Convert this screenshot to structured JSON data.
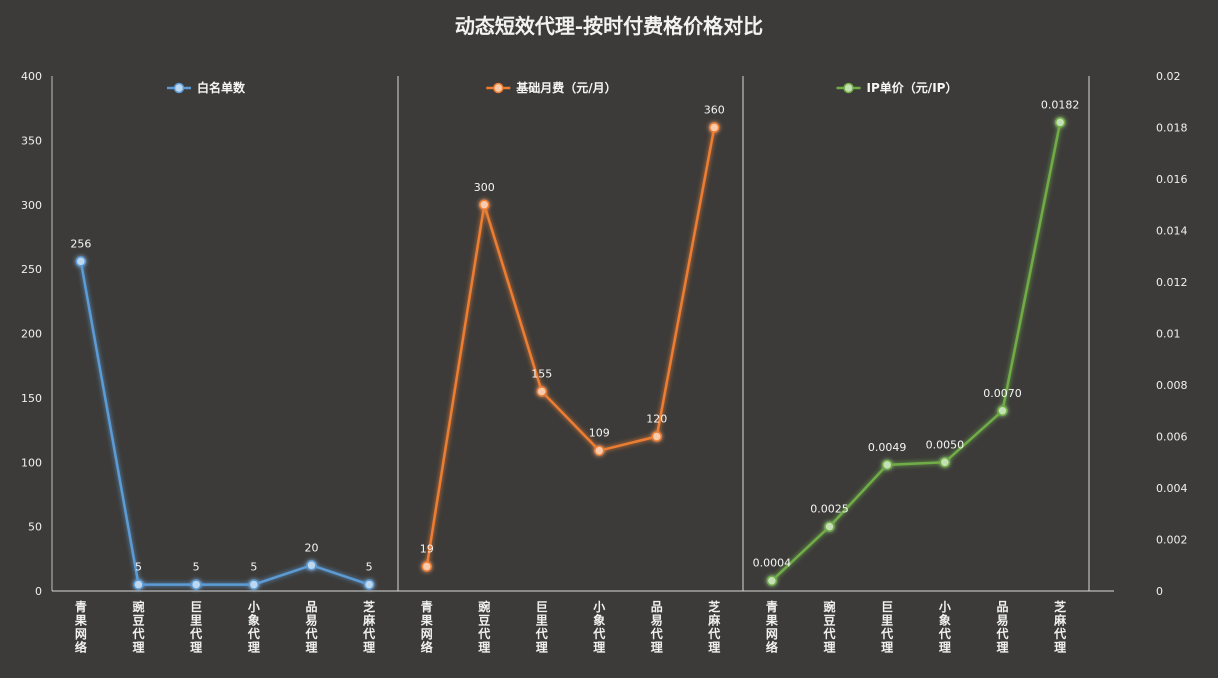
{
  "title": "动态短效代理-按时付费格价格对比",
  "colors": {
    "background": "#3c3b39",
    "series1": "#5b9bd5",
    "series2": "#ed7d31",
    "series3": "#70ad47",
    "marker1": "#bdd7ee",
    "marker2": "#f8cbad",
    "marker3": "#c5e0b4"
  },
  "chart_data": {
    "type": "line",
    "categories": [
      "青果网络",
      "豌豆代理",
      "巨里代理",
      "小象代理",
      "品易代理",
      "芝麻代理"
    ],
    "left_axis": {
      "ticks": [
        "0",
        "50",
        "100",
        "150",
        "200",
        "250",
        "300",
        "350",
        "400"
      ],
      "ylim": [
        0,
        400
      ]
    },
    "right_axis": {
      "ticks": [
        "0",
        "0.002",
        "0.004",
        "0.006",
        "0.008",
        "0.01",
        "0.012",
        "0.014",
        "0.016",
        "0.018",
        "0.02"
      ],
      "ylim": [
        0,
        0.02
      ]
    },
    "grid": false,
    "series": [
      {
        "name": "白名单数",
        "axis": "left",
        "values": [
          256,
          5,
          5,
          5,
          20,
          5
        ],
        "labels": [
          "256",
          "5",
          "5",
          "5",
          "20",
          "5"
        ]
      },
      {
        "name": "基础月费（元/月）",
        "axis": "left",
        "values": [
          19,
          300,
          155,
          109,
          120,
          360
        ],
        "labels": [
          "19",
          "300",
          "155",
          "109",
          "120",
          "360"
        ]
      },
      {
        "name": "IP单价（元/IP）",
        "axis": "right",
        "values": [
          0.0004,
          0.0025,
          0.0049,
          0.005,
          0.007,
          0.0182
        ],
        "labels": [
          "0.0004",
          "0.0025",
          "0.0049",
          "0.0050",
          "0.0070",
          "0.0182"
        ]
      }
    ]
  }
}
